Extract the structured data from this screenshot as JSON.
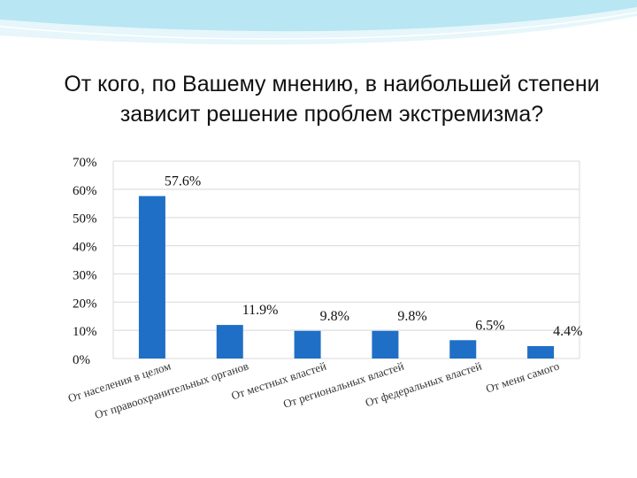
{
  "slide": {
    "title": "От кого, по Вашему мнению, в наибольшей степени зависит решение проблем экстремизма?"
  },
  "colors": {
    "bar": "#1f6fc6",
    "grid": "#d8d8d8",
    "wave_light": "#e6f6fb",
    "wave_dark": "#b8e6f3"
  },
  "chart_data": {
    "type": "bar",
    "title": "",
    "xlabel": "",
    "ylabel": "",
    "ylim": [
      0,
      70
    ],
    "y_ticks": [
      0,
      10,
      20,
      30,
      40,
      50,
      60,
      70
    ],
    "y_tick_labels": [
      "0%",
      "10%",
      "20%",
      "30%",
      "40%",
      "50%",
      "60%",
      "70%"
    ],
    "grid": true,
    "legend": "none",
    "categories": [
      "От населения в целом",
      "От правоохранительных органов",
      "От местных властей",
      "От региональных властей",
      "От федеральных властей",
      "От меня самого"
    ],
    "values": [
      57.6,
      11.9,
      9.8,
      9.8,
      6.5,
      4.4
    ],
    "data_labels": [
      "57.6%",
      "11.9%",
      "9.8%",
      "9.8%",
      "6.5%",
      "4.4%"
    ]
  }
}
